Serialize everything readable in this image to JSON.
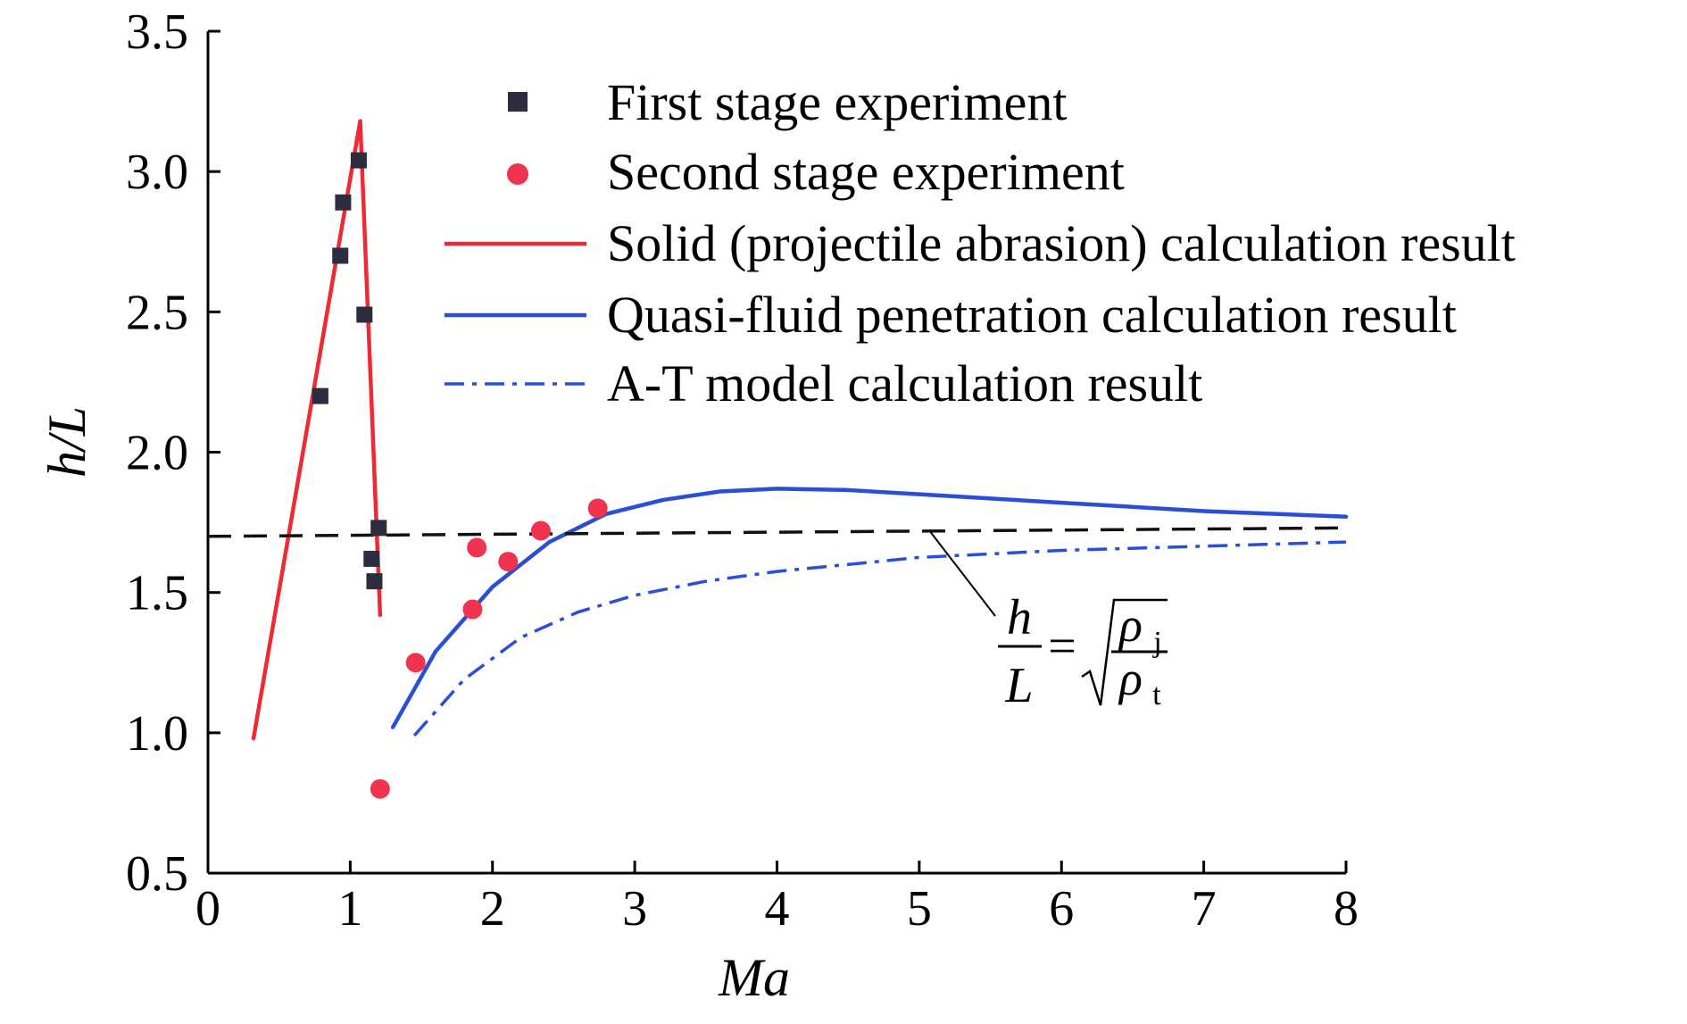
{
  "chart_data": {
    "type": "scatter",
    "xlabel": "Ma",
    "ylabel": "h/L",
    "xlim": [
      0,
      8
    ],
    "ylim": [
      0.5,
      3.5
    ],
    "xticks": [
      "0",
      "1",
      "2",
      "3",
      "4",
      "5",
      "6",
      "7",
      "8"
    ],
    "yticks": [
      "0.5",
      "1.0",
      "1.5",
      "2.0",
      "2.5",
      "3.0",
      "3.5"
    ],
    "grid": false,
    "legend_position": "top-right",
    "series": [
      {
        "name": "First stage experiment",
        "kind": "scatter",
        "marker": "square",
        "color": "#2d2d3f",
        "x": [
          0.79,
          0.93,
          0.95,
          1.06,
          1.1,
          1.15,
          1.17,
          1.2
        ],
        "y": [
          2.2,
          2.7,
          2.89,
          3.04,
          2.49,
          1.62,
          1.54,
          1.73
        ]
      },
      {
        "name": "Second stage experiment",
        "kind": "scatter",
        "marker": "circle",
        "color": "#f0334f",
        "x": [
          1.21,
          1.46,
          1.86,
          1.89,
          2.11,
          2.34,
          2.74
        ],
        "y": [
          0.8,
          1.25,
          1.44,
          1.66,
          1.61,
          1.72,
          1.8
        ]
      },
      {
        "name": "Solid (projectile abrasion) calculation result",
        "kind": "line",
        "style": "solid",
        "color": "#ee2a34",
        "x": [
          0.32,
          1.07,
          1.21
        ],
        "y": [
          0.98,
          3.18,
          1.42
        ]
      },
      {
        "name": "Quasi-fluid penetration calculation result",
        "kind": "line",
        "style": "solid",
        "color": "#2a4fd6",
        "x": [
          1.3,
          1.6,
          2.0,
          2.4,
          2.8,
          3.2,
          3.6,
          4.0,
          4.5,
          5.0,
          6.0,
          7.0,
          8.0
        ],
        "y": [
          1.02,
          1.29,
          1.52,
          1.68,
          1.78,
          1.83,
          1.86,
          1.87,
          1.865,
          1.85,
          1.82,
          1.79,
          1.77
        ]
      },
      {
        "name": "A-T model calculation result",
        "kind": "line",
        "style": "dashdot",
        "color": "#2a4fd6",
        "x": [
          1.45,
          1.8,
          2.2,
          2.6,
          3.0,
          3.5,
          4.0,
          5.0,
          6.0,
          7.0,
          8.0
        ],
        "y": [
          0.99,
          1.19,
          1.34,
          1.43,
          1.49,
          1.54,
          1.575,
          1.625,
          1.65,
          1.665,
          1.68
        ]
      },
      {
        "kind": "line",
        "style": "dashed",
        "color": "#111111",
        "x": [
          0,
          8
        ],
        "y": [
          1.7,
          1.73
        ]
      }
    ],
    "annotation": {
      "target": [
        5.08,
        1.715
      ],
      "formula": {
        "lhs_num": "h",
        "lhs_den": "L",
        "equals": "=",
        "rhs_num": "ρ",
        "rhs_num_sub": "j",
        "rhs_den": "ρ",
        "rhs_den_sub": "t"
      }
    }
  }
}
